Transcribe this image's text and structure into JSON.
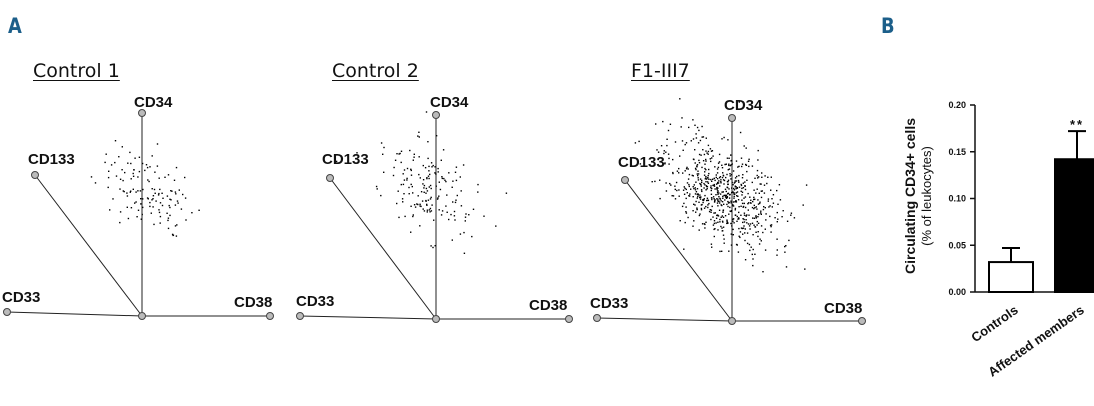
{
  "panels": {
    "a_label": "A",
    "b_label": "B"
  },
  "radial_plots": [
    {
      "title": "Control 1",
      "axes": [
        "CD34",
        "CD133",
        "CD33",
        "CD38"
      ],
      "event_count": 130
    },
    {
      "title": "Control 2",
      "axes": [
        "CD34",
        "CD133",
        "CD33",
        "CD38"
      ],
      "event_count": 170
    },
    {
      "title": "F1-III7",
      "axes": [
        "CD34",
        "CD133",
        "CD33",
        "CD38"
      ],
      "event_count": 700
    }
  ],
  "chart_data": {
    "type": "bar",
    "categories": [
      "Controls",
      "Affected members"
    ],
    "values": [
      0.032,
      0.142
    ],
    "error": [
      0.015,
      0.03
    ],
    "significance": [
      "",
      "**"
    ],
    "ylabel": "Circulating CD34+ cells",
    "ylabel2": "(% of leukocytes)",
    "ylim": [
      0,
      0.2
    ],
    "yticks": [
      "0.00",
      "0.05",
      "0.10",
      "0.15",
      "0.20"
    ],
    "colors": {
      "Controls": "#ffffff",
      "Affected members": "#000000"
    }
  }
}
